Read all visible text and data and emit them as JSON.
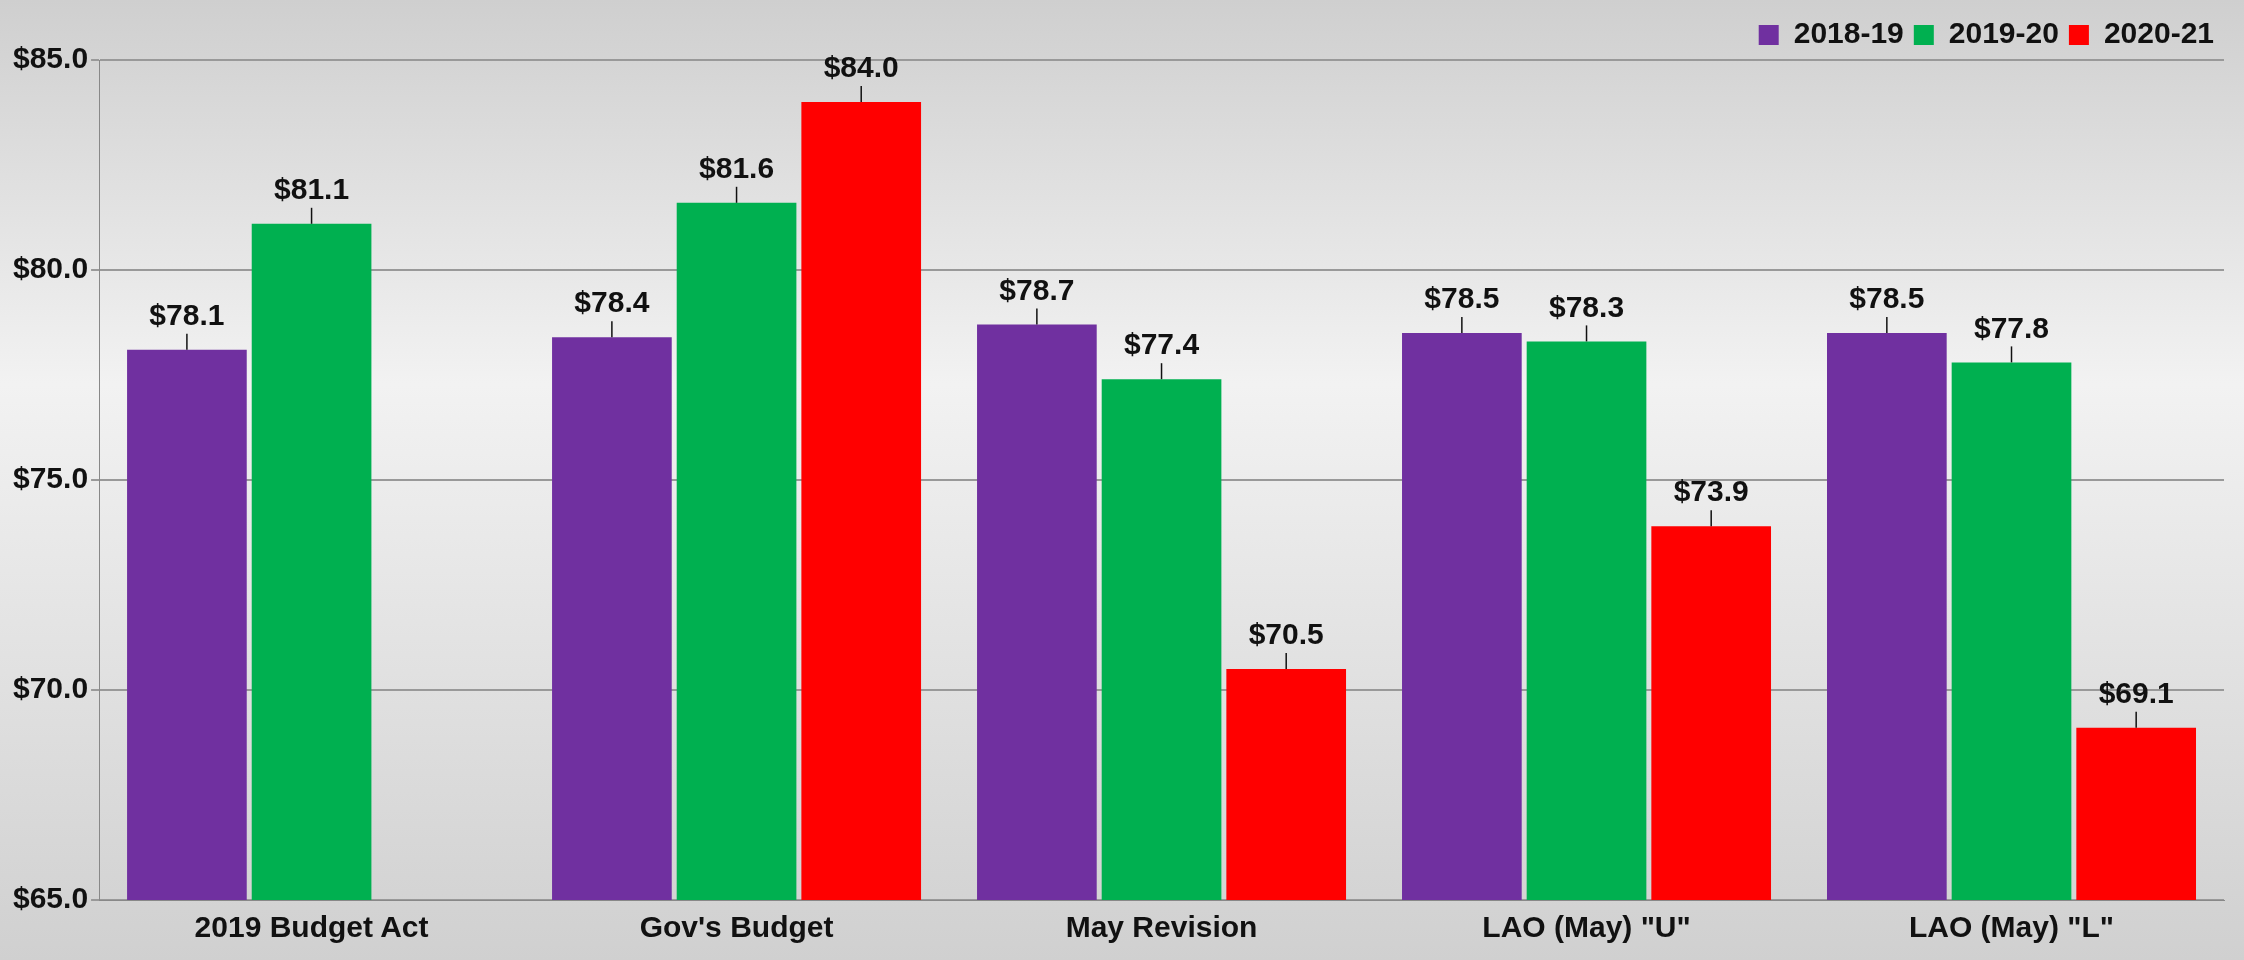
{
  "chart_data": {
    "type": "bar",
    "categories": [
      "2019 Budget Act",
      "Gov's Budget",
      "May Revision",
      "LAO (May) \"U\"",
      "LAO (May) \"L\""
    ],
    "series": [
      {
        "name": "2018-19",
        "color": "#7030a0",
        "values": [
          78.1,
          78.4,
          78.7,
          78.5,
          78.5
        ],
        "value_labels": [
          "$78.1",
          "$78.4",
          "$78.7",
          "$78.5",
          "$78.5"
        ]
      },
      {
        "name": "2019-20",
        "color": "#00b050",
        "values": [
          81.1,
          81.6,
          77.4,
          78.3,
          77.8
        ],
        "value_labels": [
          "$81.1",
          "$81.6",
          "$77.4",
          "$78.3",
          "$77.8"
        ]
      },
      {
        "name": "2020-21",
        "color": "#ff0000",
        "values": [
          null,
          84.0,
          70.5,
          73.9,
          69.1
        ],
        "value_labels": [
          null,
          "$84.0",
          "$70.5",
          "$73.9",
          "$69.1"
        ]
      }
    ],
    "ylim": [
      65,
      85
    ],
    "yticks": [
      {
        "value": 65,
        "label": "$65.0"
      },
      {
        "value": 70,
        "label": "$70.0"
      },
      {
        "value": 75,
        "label": "$75.0"
      },
      {
        "value": 80,
        "label": "$80.0"
      },
      {
        "value": 85,
        "label": "$85.0"
      }
    ],
    "grid": "y",
    "legend": "top right"
  }
}
